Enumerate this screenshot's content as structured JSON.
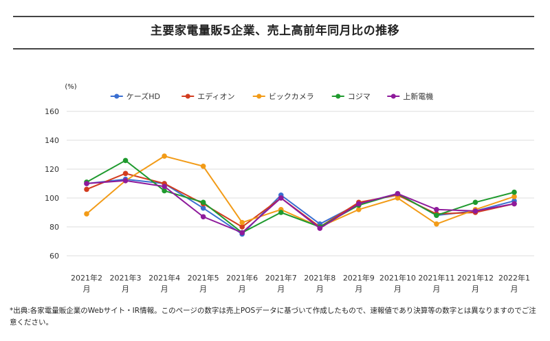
{
  "title": "主要家電量販5企業、売上高前年同月比の推移",
  "footnote": "*出典:各家電量販企業のWebサイト・IR情報。このページの数字は売上POSデータに基づいて作成したもので、速報値であり決算等の数字とは異なりますのでご注意ください。",
  "chart_data": {
    "type": "line",
    "title": "主要家電量販5企業、売上高前年同月比の推移",
    "ylabel": "(%)",
    "xlabel": "",
    "ylim": [
      60,
      160
    ],
    "yticks": [
      60,
      80,
      100,
      120,
      140,
      160
    ],
    "grid": true,
    "legend_position": "top-center",
    "categories": [
      {
        "year": "2021年2",
        "month": "月"
      },
      {
        "year": "2021年3",
        "month": "月"
      },
      {
        "year": "2021年4",
        "month": "月"
      },
      {
        "year": "2021年5",
        "month": "月"
      },
      {
        "year": "2021年6",
        "month": "月"
      },
      {
        "year": "2021年7",
        "month": "月"
      },
      {
        "year": "2021年8",
        "month": "月"
      },
      {
        "year": "2021年9",
        "month": "月"
      },
      {
        "year": "2021年10",
        "month": "月"
      },
      {
        "year": "2021年11",
        "month": "月"
      },
      {
        "year": "2021年12",
        "month": "月"
      },
      {
        "year": "2022年1",
        "month": "月"
      }
    ],
    "series": [
      {
        "name": "ケーズHD",
        "color": "#3a6fd1",
        "values": [
          110,
          113,
          110,
          93,
          75,
          102,
          82,
          96,
          103,
          88,
          91,
          98
        ]
      },
      {
        "name": "エディオン",
        "color": "#d23c1f",
        "values": [
          106,
          117,
          110,
          96,
          80,
          100,
          80,
          97,
          102,
          89,
          90,
          96
        ]
      },
      {
        "name": "ビックカメラ",
        "color": "#f29b17",
        "values": [
          89,
          112,
          129,
          122,
          83,
          92,
          80,
          92,
          100,
          82,
          92,
          101
        ]
      },
      {
        "name": "コジマ",
        "color": "#1f9a2e",
        "values": [
          111,
          126,
          105,
          97,
          76,
          90,
          80,
          95,
          103,
          88,
          97,
          104
        ]
      },
      {
        "name": "上新電機",
        "color": "#8e1a9b",
        "values": [
          110,
          112,
          108,
          87,
          76,
          100,
          79,
          96,
          103,
          92,
          91,
          96
        ]
      }
    ]
  }
}
